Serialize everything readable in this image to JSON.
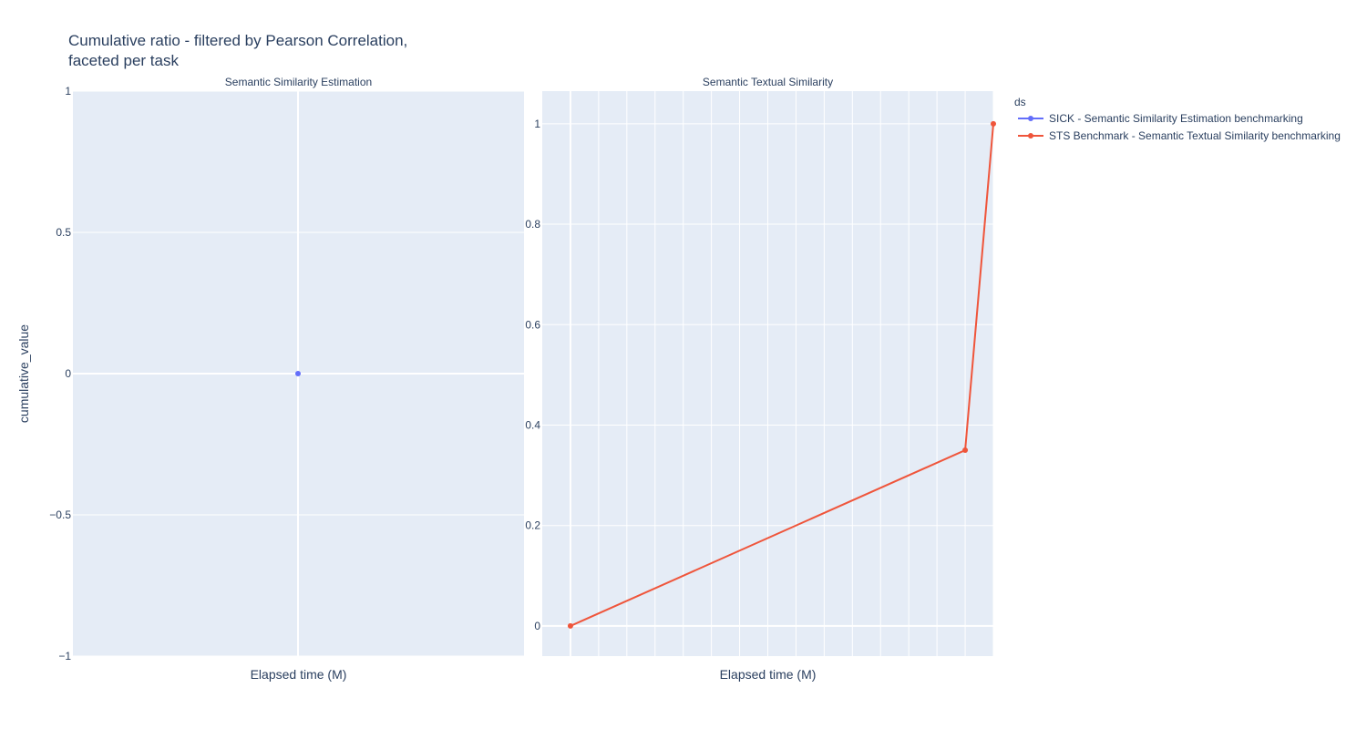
{
  "chart_data": {
    "type": "line",
    "title_line1": "Cumulative ratio - filtered by Pearson Correlation,",
    "title_line2": "faceted per task",
    "ylabel": "cumulative_value",
    "legend": {
      "title": "ds",
      "placement": "top-right",
      "items": [
        {
          "name": "SICK - Semantic Similarity Estimation benchmarking",
          "color": "#636efa"
        },
        {
          "name": "STS Benchmark - Semantic Textual Similarity benchmarking",
          "color": "#ef553b"
        }
      ]
    },
    "panels": [
      {
        "subplot_title": "Semantic Similarity Estimation",
        "xlabel": "Elapsed time (M)",
        "ylim": [
          -1,
          1
        ],
        "yticks": [
          1,
          0.5,
          0,
          -0.5,
          -1
        ],
        "ytick_labels": [
          "1",
          "0.5",
          "0",
          "−0.5",
          "−1"
        ],
        "grid": true,
        "series": [
          {
            "legend_index": 0,
            "color": "#636efa",
            "x": [
              0
            ],
            "y": [
              0
            ]
          }
        ]
      },
      {
        "subplot_title": "Semantic Textual Similarity",
        "xlabel": "Elapsed time (M)",
        "ylim": [
          -0.06,
          1.065
        ],
        "yticks": [
          1,
          0.8,
          0.6,
          0.4,
          0.2,
          0
        ],
        "ytick_labels": [
          "1",
          "0.8",
          "0.6",
          "0.4",
          "0.2",
          "0"
        ],
        "grid": true,
        "series": [
          {
            "legend_index": 1,
            "color": "#ef553b",
            "x": [
              0,
              14,
              15
            ],
            "y": [
              0,
              0.35,
              1
            ]
          }
        ]
      }
    ]
  }
}
